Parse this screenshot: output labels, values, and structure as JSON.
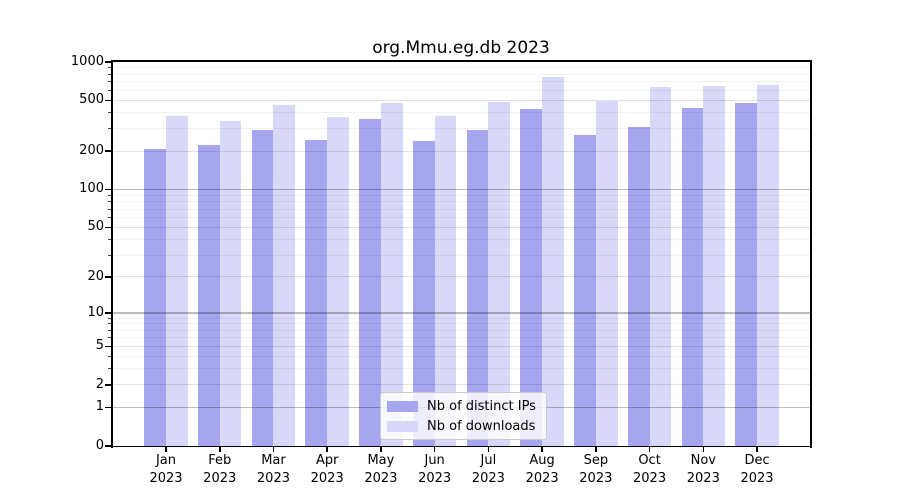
{
  "chart_data": {
    "type": "bar",
    "title": "org.Mmu.eg.db 2023",
    "categories": [
      "Jan 2023",
      "Feb 2023",
      "Mar 2023",
      "Apr 2023",
      "May 2023",
      "Jun 2023",
      "Jul 2023",
      "Aug 2023",
      "Sep 2023",
      "Oct 2023",
      "Nov 2023",
      "Dec 2023"
    ],
    "series": [
      {
        "name": "Nb of distinct IPs",
        "color": "#a5a5f0",
        "values": [
          210,
          225,
          295,
          245,
          355,
          240,
          295,
          425,
          270,
          310,
          435,
          480
        ]
      },
      {
        "name": "Nb of downloads",
        "color": "#d8d8f8",
        "values": [
          375,
          345,
          460,
          370,
          475,
          375,
          485,
          760,
          495,
          635,
          650,
          665
        ]
      }
    ],
    "xlabel": "",
    "ylabel": "",
    "y_scale": "log10(value+1)",
    "y_ticks": [
      1000,
      500,
      200,
      100,
      50,
      20,
      10,
      5,
      2,
      1,
      0
    ],
    "ylim": [
      0,
      1000
    ],
    "grid": true,
    "legend_position": "bottom-center",
    "colors": {
      "grid_major": "#bdbdbd",
      "grid_semi": "#e2e2e2",
      "grid_minor": "#f1f1f1",
      "axis": "#000000",
      "background": "#ffffff"
    }
  }
}
